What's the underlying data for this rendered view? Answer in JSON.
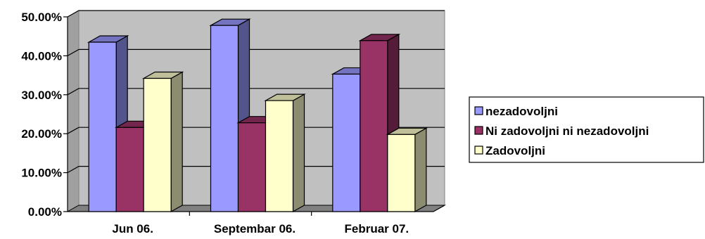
{
  "chart_data": {
    "type": "bar",
    "categories": [
      "Jun 06.",
      "Septembar 06.",
      "Februar 07."
    ],
    "series": [
      {
        "name": "nezadovoljni",
        "values": [
          43.5,
          47.8,
          35.3
        ],
        "color": "#9999ff"
      },
      {
        "name": "Ni zadovoljni ni nezadovoljni",
        "values": [
          21.6,
          22.8,
          43.9
        ],
        "color": "#993366"
      },
      {
        "name": "Zadovoljni",
        "values": [
          34.2,
          28.5,
          19.8
        ],
        "color": "#ffffcc"
      }
    ],
    "ylim": [
      0,
      50
    ],
    "yticks": [
      "0.00%",
      "10.00%",
      "20.00%",
      "30.00%",
      "40.00%",
      "50.00%"
    ],
    "title": "",
    "xlabel": "",
    "ylabel": "",
    "grid": true,
    "legend": "right",
    "wall_color": "#c0c0c0",
    "floor_color": "#808080"
  }
}
